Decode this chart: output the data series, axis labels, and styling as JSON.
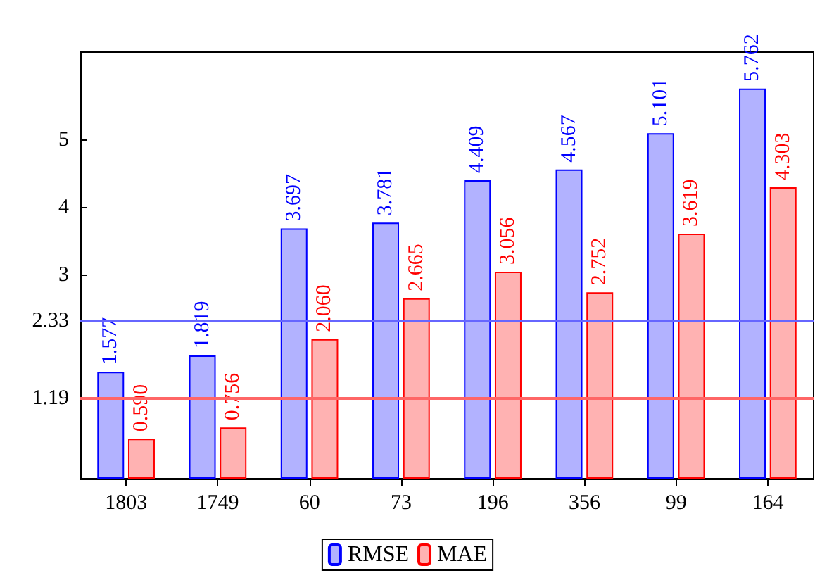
{
  "chart_data": {
    "type": "bar",
    "categories": [
      "1803",
      "1749",
      "60",
      "73",
      "196",
      "356",
      "99",
      "164"
    ],
    "series": [
      {
        "name": "RMSE",
        "color": "#0000ff",
        "values": [
          1.577,
          1.819,
          3.697,
          3.781,
          4.409,
          4.567,
          5.101,
          5.762
        ],
        "value_labels": [
          "1.577",
          "1.819",
          "3.697",
          "3.781",
          "4.409",
          "4.567",
          "5.101",
          "5.762"
        ]
      },
      {
        "name": "MAE",
        "color": "#ff0000",
        "values": [
          0.59,
          0.756,
          2.06,
          2.665,
          3.056,
          2.752,
          3.619,
          4.303
        ],
        "value_labels": [
          "0.590",
          "0.756",
          "2.060",
          "2.665",
          "3.056",
          "2.752",
          "3.619",
          "4.303"
        ]
      }
    ],
    "ylim": [
      0,
      6.3
    ],
    "yticks": [
      1.19,
      2.33,
      3,
      4,
      5
    ],
    "ref_lines": [
      {
        "axis": "y",
        "value": 2.33,
        "color": "#6666ff"
      },
      {
        "axis": "y",
        "value": 1.19,
        "color": "#ff6666"
      }
    ],
    "legend": "bottom",
    "grid": false
  }
}
